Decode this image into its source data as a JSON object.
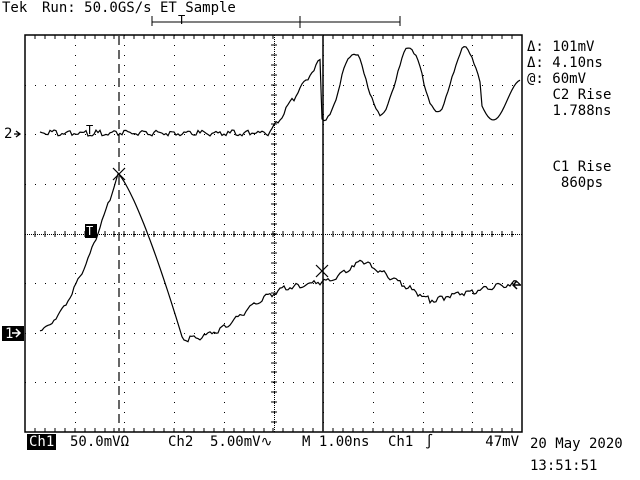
{
  "header": {
    "brand": "Tek",
    "status": "Run: 50.0GS/s ET Sample",
    "trigger_marker": "T"
  },
  "readouts": {
    "delta_v": "Δ: 101mV",
    "delta_t": "Δ: 4.10ns",
    "at_v": "@: 60mV",
    "meas1_label": "C2 Rise",
    "meas1_value": "1.788ns",
    "meas2_label": "C1 Rise",
    "meas2_value": "860ps"
  },
  "channels": {
    "ch2_marker": "2",
    "ch1_marker": "1",
    "trigger_level_marker": "T",
    "trigger_point_marker": "T"
  },
  "footer": {
    "ch1_label": "Ch1",
    "ch1_scale": "50.0mVΩ",
    "ch2_label": "Ch2",
    "ch2_scale": "5.00mV∿",
    "timebase": "M 1.00ns",
    "trigger_source": "Ch1",
    "trigger_slope": "∫",
    "trigger_level": "47mV",
    "date": "20 May 2020",
    "time": "13:51:51"
  }
}
